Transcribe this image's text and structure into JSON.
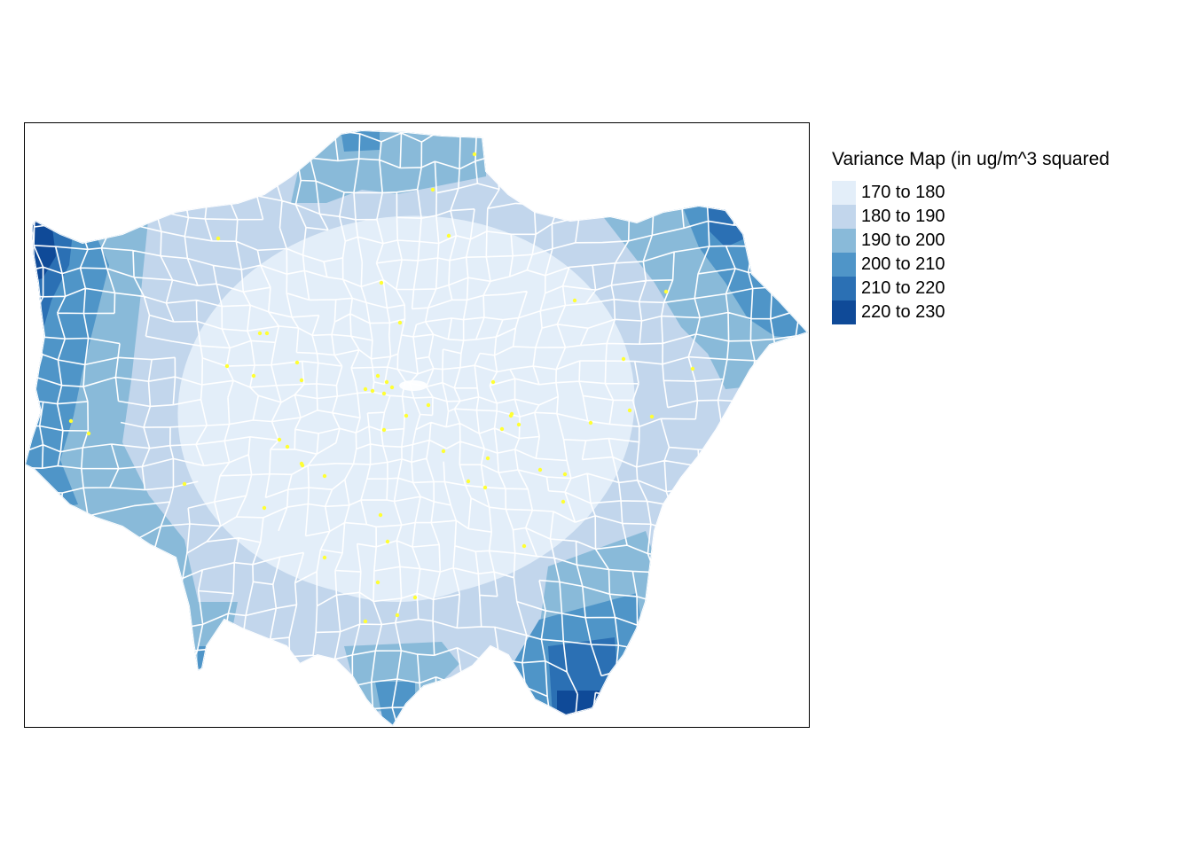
{
  "legend": {
    "title": "Variance Map (in ug/m^3 squared",
    "classes": [
      {
        "label": "170 to 180",
        "color": "#e3eef9"
      },
      {
        "label": "180 to 190",
        "color": "#c2d6ec"
      },
      {
        "label": "190 to 200",
        "color": "#89bad9"
      },
      {
        "label": "200 to 210",
        "color": "#4f95c8"
      },
      {
        "label": "210 to 220",
        "color": "#2b70b4"
      },
      {
        "label": "220 to 230",
        "color": "#0f4a98"
      }
    ]
  },
  "map": {
    "boundary_color": "#ffffff",
    "station_color": "#ffff33",
    "background_color": "#ffffff",
    "frame_color": "#000000"
  }
}
